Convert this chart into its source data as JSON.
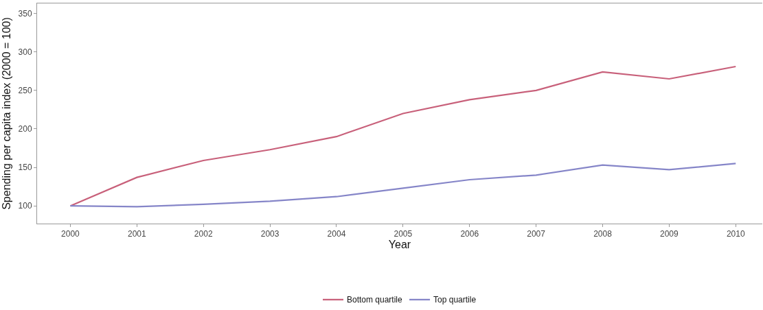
{
  "chart_data": {
    "type": "line",
    "xlabel": "Year",
    "ylabel": "Spending per capita index (2000 = 100)",
    "x": [
      2000,
      2001,
      2002,
      2003,
      2004,
      2005,
      2006,
      2007,
      2008,
      2009,
      2010
    ],
    "series": [
      {
        "name": "Bottom quartile",
        "color": "#c8607a",
        "values": [
          100,
          137,
          159,
          173,
          190,
          220,
          238,
          250,
          274,
          265,
          281
        ]
      },
      {
        "name": "Top quartile",
        "color": "#8585c8",
        "values": [
          100,
          99,
          102,
          106,
          112,
          123,
          134,
          140,
          153,
          147,
          155
        ]
      }
    ],
    "xlim": [
      1999.5,
      2010.4
    ],
    "xticks": [
      2000,
      2001,
      2002,
      2003,
      2004,
      2005,
      2006,
      2007,
      2008,
      2009,
      2010
    ],
    "ylim": [
      77,
      363
    ],
    "yticks": [
      100,
      150,
      200,
      250,
      300,
      350
    ],
    "grid": false,
    "legend": "bottom",
    "marker": "none",
    "line_style": "solid"
  }
}
